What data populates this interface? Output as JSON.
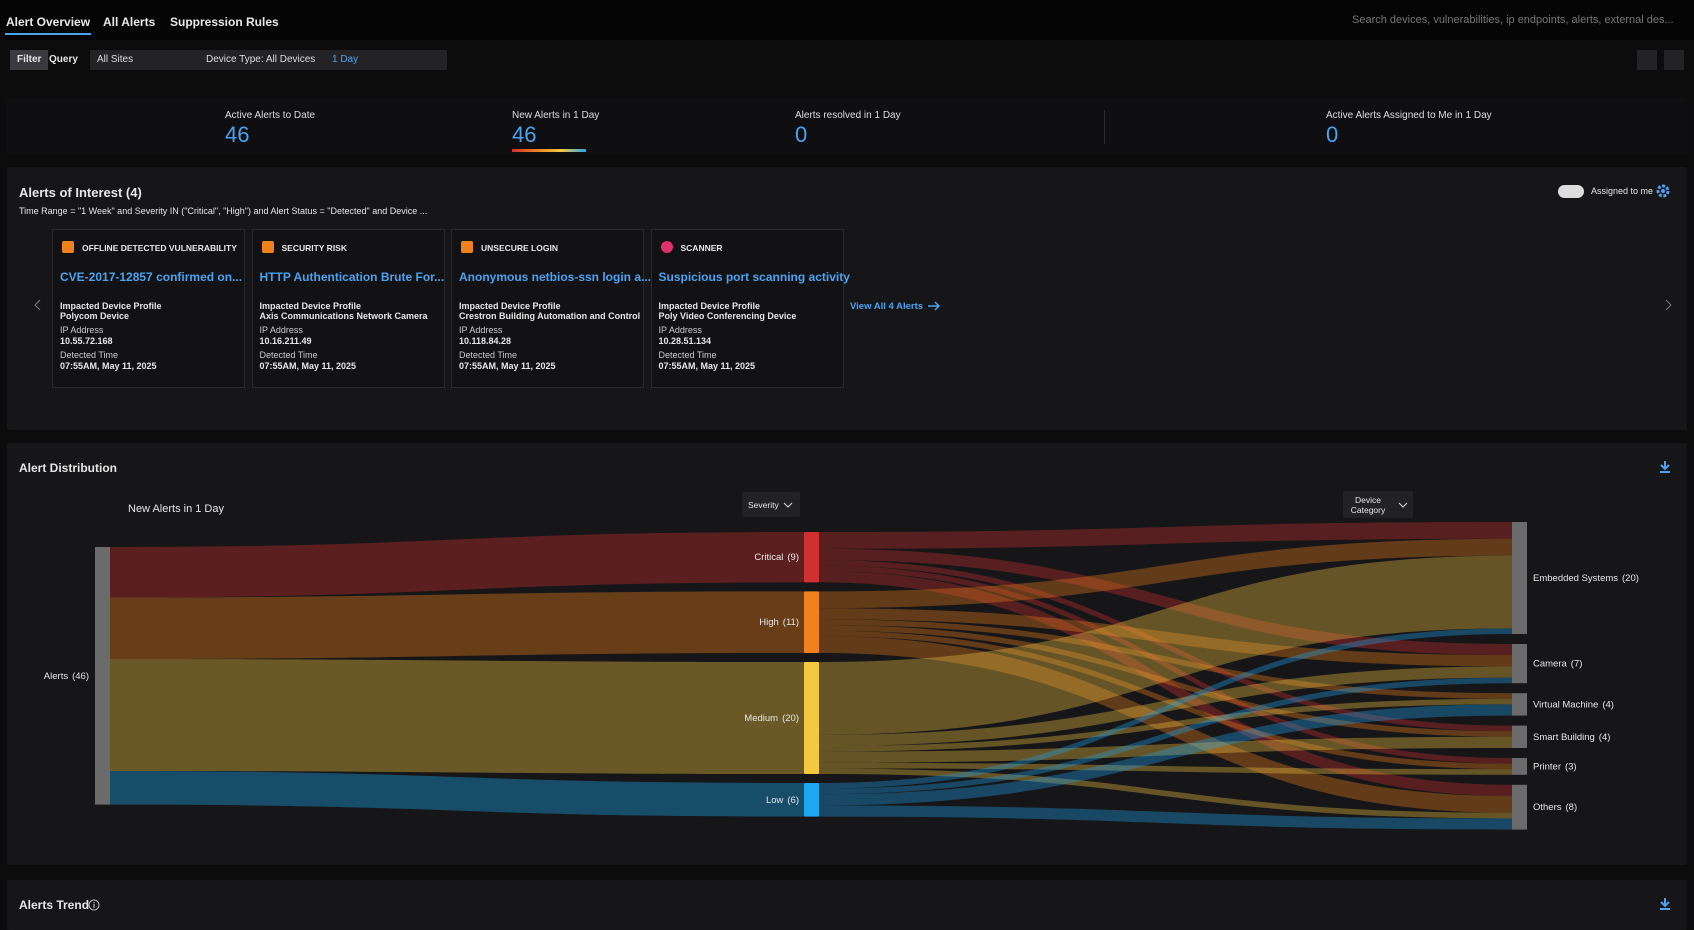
{
  "tabs": [
    "Alert Overview",
    "All Alerts",
    "Suppression Rules"
  ],
  "search_placeholder": "Search devices, vulnerabilities, ip endpoints, alerts, external des...",
  "filters": {
    "filter": "Filter",
    "query": "Query",
    "site": "All Sites",
    "device_type": "Device Type: All Devices",
    "time_range": "1 Day"
  },
  "stats": [
    {
      "label": "Active Alerts to Date",
      "value": 46
    },
    {
      "label": "New Alerts in 1 Day",
      "value": 46
    },
    {
      "label": "Alerts resolved in 1 Day",
      "value": 0
    },
    {
      "label": "Active Alerts Assigned to Me in 1 Day",
      "value": 0
    }
  ],
  "alerts_of_interest": {
    "title": "Alerts of Interest (4)",
    "query": "Time Range = \"1 Week\" and Severity IN (\"Critical\", \"High\") and Alert Status = \"Detected\" and Device ...",
    "toggle": "Assigned to me",
    "cards": [
      {
        "category": "OFFLINE DETECTED VULNERABILITY",
        "title": "CVE-2017-12857 confirmed on...",
        "profile_label": "Impacted Device Profile",
        "profile": "Polycom Device",
        "ip_label": "IP Address",
        "ip": "10.55.72.168",
        "time_label": "Detected Time",
        "time": "07:55AM, May 11, 2025"
      },
      {
        "category": "SECURITY RISK",
        "title": "HTTP Authentication Brute For...",
        "profile_label": "Impacted Device Profile",
        "profile": "Axis Communications Network Camera",
        "ip_label": "IP Address",
        "ip": "10.16.211.49",
        "time_label": "Detected Time",
        "time": "07:55AM, May 11, 2025"
      },
      {
        "category": "UNSECURE LOGIN",
        "title": "Anonymous netbios-ssn login a...",
        "profile_label": "Impacted Device Profile",
        "profile": "Crestron Building Automation and Control",
        "ip_label": "IP Address",
        "ip": "10.118.84.28",
        "time_label": "Detected Time",
        "time": "07:55AM, May 11, 2025"
      },
      {
        "category": "SCANNER",
        "title": "Suspicious port scanning activity",
        "profile_label": "Impacted Device Profile",
        "profile": "Poly Video Conferencing Device",
        "ip_label": "IP Address",
        "ip": "10.28.51.134",
        "time_label": "Detected Time",
        "time": "07:55AM, May 11, 2025"
      }
    ],
    "view_all": "View All 4 Alerts"
  },
  "chart_data": {
    "type": "sankey",
    "title": "Alert Distribution",
    "subtitle": "New Alerts in 1 Day",
    "source": {
      "label": "Alerts",
      "value": 46,
      "value_label": "(46)",
      "color": "#6b6b6b"
    },
    "columns": [
      {
        "header": "Severity",
        "categories": [
          "Critical",
          "High",
          "Medium",
          "Low"
        ],
        "values": [
          9,
          11,
          20,
          6
        ],
        "value_labels": [
          "(9)",
          "(11)",
          "(20)",
          "(6)"
        ],
        "colors": [
          "#d0302f",
          "#f0821e",
          "#f5c842",
          "#1ea7f0"
        ]
      },
      {
        "header": "Device Category",
        "categories": [
          "Embedded Systems",
          "Camera",
          "Virtual Machine",
          "Smart Building",
          "Printer",
          "Others"
        ],
        "values": [
          20,
          7,
          4,
          4,
          3,
          8
        ],
        "value_labels": [
          "(20)",
          "(7)",
          "(4)",
          "(4)",
          "(3)",
          "(8)"
        ],
        "color": "#6b6b6b"
      }
    ],
    "flows": [
      [
        3,
        2,
        0,
        1,
        1,
        2
      ],
      [
        3,
        2,
        1,
        1,
        1,
        3
      ],
      [
        13,
        2,
        1,
        2,
        1,
        1
      ],
      [
        1,
        1,
        2,
        0,
        0,
        2
      ]
    ]
  },
  "alerts_trend": {
    "title": "Alerts Trend"
  }
}
